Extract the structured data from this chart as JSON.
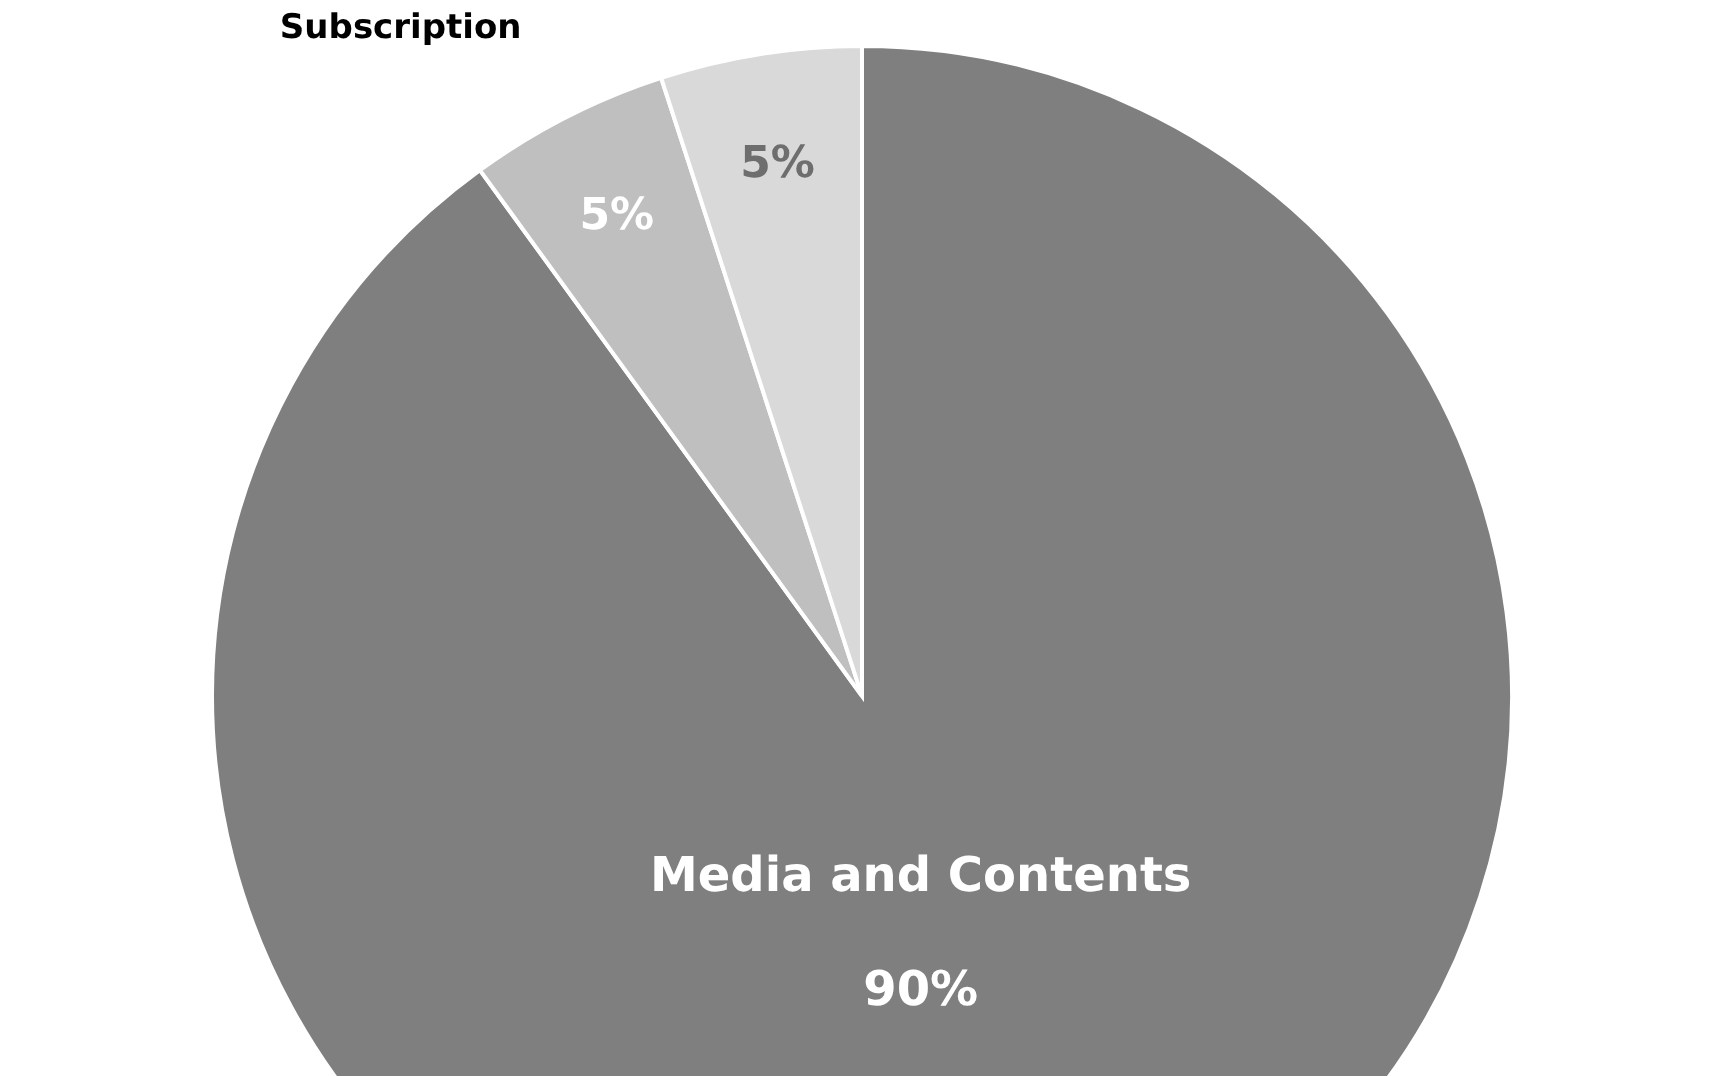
{
  "chart_data": {
    "type": "pie",
    "categories": [
      "Media and Contents",
      "Subscription",
      null
    ],
    "values": [
      90,
      5,
      5
    ],
    "colors": [
      "#7f7f7f",
      "#bfbfbf",
      "#d9d9d9"
    ],
    "value_labels": [
      "90%",
      "5%",
      "5%"
    ]
  }
}
